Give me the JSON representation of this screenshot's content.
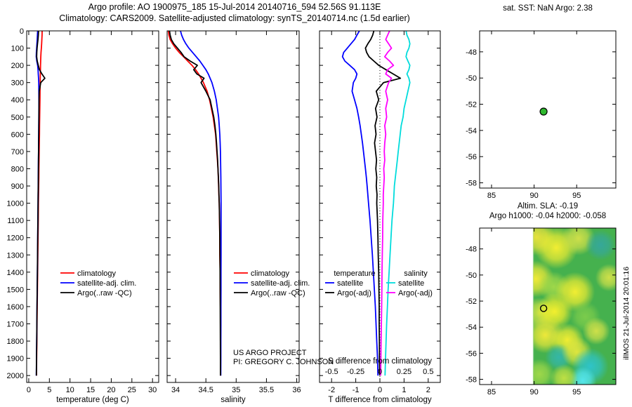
{
  "header": {
    "title_line1": "Argo profile: AO 1900975_185 15-Jul-2014 20140716_594 52.56S 91.113E",
    "title_line2": "Climatology: CARS2009. Satellite-adjusted climatology: synTS_20140714.nc (1.5d earlier)"
  },
  "footer": {
    "project_line1": "US ARGO PROJECT",
    "project_line2": "PI: GREGORY C. JOHNSON",
    "timestamp": "illMOS 21-Jul-2014 20:01:16"
  },
  "chart_data": [
    {
      "id": "temperature-profile",
      "type": "line",
      "xlabel": "temperature (deg C)",
      "xlim": [
        -0.5,
        31.5
      ],
      "ylim": [
        0,
        2040
      ],
      "xticks": [
        0,
        5,
        10,
        15,
        20,
        25,
        30
      ],
      "yticks": [
        0,
        100,
        200,
        300,
        400,
        500,
        600,
        700,
        800,
        900,
        1000,
        1100,
        1200,
        1300,
        1400,
        1500,
        1600,
        1700,
        1800,
        1900,
        2000
      ],
      "ytick_labels": true,
      "depths": [
        0,
        25,
        50,
        75,
        100,
        125,
        150,
        175,
        200,
        225,
        250,
        275,
        300,
        350,
        400,
        450,
        500,
        550,
        600,
        650,
        700,
        750,
        800,
        850,
        900,
        950,
        1000,
        1100,
        1200,
        1300,
        1400,
        1500,
        1600,
        1700,
        1800,
        1900,
        2000
      ],
      "series": [
        {
          "name": "climatology",
          "color": "#ff0000",
          "values": [
            3.25,
            3.22,
            3.18,
            3.12,
            3.05,
            2.98,
            2.92,
            2.88,
            2.85,
            2.83,
            2.81,
            2.79,
            2.77,
            2.74,
            2.71,
            2.68,
            2.65,
            2.62,
            2.59,
            2.56,
            2.53,
            2.5,
            2.47,
            2.44,
            2.41,
            2.38,
            2.35,
            2.3,
            2.25,
            2.2,
            2.15,
            2.1,
            2.05,
            2.0,
            1.96,
            1.92,
            1.88
          ]
        },
        {
          "name": "satellite-adj. clim.",
          "color": "#0000ff",
          "values": [
            2.15,
            2.1,
            2.05,
            1.98,
            1.92,
            1.85,
            1.82,
            1.95,
            2.15,
            2.25,
            2.3,
            2.38,
            2.42,
            2.45,
            2.46,
            2.46,
            2.45,
            2.43,
            2.41,
            2.39,
            2.37,
            2.35,
            2.33,
            2.31,
            2.29,
            2.27,
            2.25,
            2.21,
            2.17,
            2.13,
            2.09,
            2.05,
            2.0,
            1.96,
            1.92,
            1.88,
            1.84
          ]
        },
        {
          "name": "Argo(..raw -QC)",
          "color": "#000000",
          "values": [
            2.38,
            2.32,
            2.24,
            2.12,
            2.02,
            1.95,
            1.92,
            2.05,
            2.3,
            2.6,
            3.2,
            3.9,
            2.9,
            2.55,
            2.5,
            2.48,
            2.46,
            2.44,
            2.42,
            2.4,
            2.38,
            2.36,
            2.34,
            2.32,
            2.3,
            2.28,
            2.26,
            2.22,
            2.18,
            2.14,
            2.1,
            2.06,
            2.01,
            1.97,
            1.93,
            1.89,
            1.85
          ]
        }
      ],
      "legend": [
        {
          "label": "climatology",
          "color": "#ff0000"
        },
        {
          "label": "satellite-adj. clim.",
          "color": "#0000ff"
        },
        {
          "label": "Argo(..raw -QC)",
          "color": "#000000"
        }
      ]
    },
    {
      "id": "salinity-profile",
      "type": "line",
      "xlabel": "salinity",
      "xlim": [
        33.86,
        36.04
      ],
      "ylim": [
        0,
        2040
      ],
      "xticks": [
        34,
        34.5,
        35,
        35.5,
        36
      ],
      "yticks": [
        0,
        100,
        200,
        300,
        400,
        500,
        600,
        700,
        800,
        900,
        1000,
        1100,
        1200,
        1300,
        1400,
        1500,
        1600,
        1700,
        1800,
        1900,
        2000
      ],
      "ytick_labels": false,
      "depths": [
        0,
        25,
        50,
        75,
        100,
        125,
        150,
        175,
        200,
        225,
        250,
        275,
        300,
        350,
        400,
        450,
        500,
        550,
        600,
        650,
        700,
        750,
        800,
        850,
        900,
        950,
        1000,
        1100,
        1200,
        1300,
        1400,
        1500,
        1600,
        1700,
        1800,
        1900,
        2000
      ],
      "series": [
        {
          "name": "climatology",
          "color": "#ff0000",
          "values": [
            33.88,
            33.89,
            33.91,
            33.95,
            34.0,
            34.06,
            34.13,
            34.2,
            34.27,
            34.33,
            34.38,
            34.42,
            34.46,
            34.52,
            34.56,
            34.59,
            34.62,
            34.64,
            34.66,
            34.67,
            34.68,
            34.69,
            34.7,
            34.705,
            34.71,
            34.715,
            34.72,
            34.725,
            34.73,
            34.73,
            34.735,
            34.735,
            34.74,
            34.74,
            34.74,
            34.74,
            34.74
          ]
        },
        {
          "name": "satellite-adj. clim.",
          "color": "#0000ff",
          "values": [
            34.08,
            34.1,
            34.13,
            34.17,
            34.22,
            34.28,
            34.34,
            34.4,
            34.45,
            34.5,
            34.54,
            34.57,
            34.6,
            34.64,
            34.67,
            34.69,
            34.71,
            34.72,
            34.73,
            34.735,
            34.74,
            34.743,
            34.745,
            34.747,
            34.748,
            34.749,
            34.75,
            34.75,
            34.75,
            34.75,
            34.749,
            34.749,
            34.748,
            34.748,
            34.747,
            34.747,
            34.746
          ]
        },
        {
          "name": "Argo(..raw -QC)",
          "color": "#000000",
          "values": [
            33.9,
            33.91,
            33.93,
            33.97,
            34.03,
            34.09,
            34.14,
            34.24,
            34.36,
            34.3,
            34.35,
            34.47,
            34.42,
            34.5,
            34.57,
            34.6,
            34.63,
            34.65,
            34.665,
            34.675,
            34.685,
            34.694,
            34.7,
            34.706,
            34.712,
            34.716,
            34.72,
            34.726,
            34.73,
            34.732,
            34.734,
            34.736,
            34.737,
            34.738,
            34.739,
            34.74,
            34.74
          ]
        }
      ],
      "legend": [
        {
          "label": "climatology",
          "color": "#ff0000"
        },
        {
          "label": "satellite-adj. clim.",
          "color": "#0000ff"
        },
        {
          "label": "Argo(..raw -QC)",
          "color": "#000000"
        }
      ]
    },
    {
      "id": "difference-profile",
      "type": "line",
      "xlabel": "T difference from climatology",
      "x2label": "S difference from climatology",
      "xlim": [
        -2.5,
        2.5
      ],
      "x2lim": [
        -0.625,
        0.625
      ],
      "ylim": [
        0,
        2040
      ],
      "xticks": [
        -2,
        -1,
        0,
        1,
        2
      ],
      "x2ticks": [
        -0.5,
        -0.25,
        0,
        0.25,
        0.5
      ],
      "yticks": [
        0,
        100,
        200,
        300,
        400,
        500,
        600,
        700,
        800,
        900,
        1000,
        1100,
        1200,
        1300,
        1400,
        1500,
        1600,
        1700,
        1800,
        1900,
        2000
      ],
      "ytick_labels": false,
      "zero_line": true,
      "depths": [
        0,
        25,
        50,
        75,
        100,
        125,
        150,
        175,
        200,
        225,
        250,
        275,
        300,
        350,
        400,
        450,
        500,
        550,
        600,
        650,
        700,
        750,
        800,
        850,
        900,
        950,
        1000,
        1100,
        1200,
        1300,
        1400,
        1500,
        1600,
        1700,
        1800,
        1900,
        2000
      ],
      "series": [
        {
          "name": "T satellite",
          "color": "#0000ff",
          "axis": "x1",
          "values": [
            -0.85,
            -0.95,
            -1.05,
            -1.2,
            -1.35,
            -1.5,
            -1.55,
            -1.45,
            -1.25,
            -1.05,
            -0.95,
            -1.0,
            -1.1,
            -1.15,
            -1.05,
            -0.95,
            -0.88,
            -0.82,
            -0.77,
            -0.72,
            -0.68,
            -0.64,
            -0.6,
            -0.56,
            -0.53,
            -0.5,
            -0.47,
            -0.41,
            -0.36,
            -0.31,
            -0.27,
            -0.23,
            -0.19,
            -0.16,
            -0.13,
            -0.1,
            -0.08
          ]
        },
        {
          "name": "T Argo(-adj)",
          "color": "#000000",
          "axis": "x1",
          "values": [
            -0.25,
            -0.3,
            -0.38,
            -0.5,
            -0.6,
            -0.55,
            -0.45,
            -0.25,
            -0.05,
            0.25,
            0.55,
            0.85,
            0.15,
            -0.15,
            -0.05,
            -0.18,
            -0.12,
            -0.2,
            -0.16,
            -0.22,
            -0.18,
            -0.14,
            -0.17,
            -0.13,
            -0.15,
            -0.12,
            -0.13,
            -0.1,
            -0.08,
            -0.07,
            -0.05,
            -0.04,
            -0.03,
            -0.03,
            -0.02,
            -0.02,
            -0.01
          ]
        },
        {
          "name": "S satellite",
          "color": "#00dcdc",
          "axis": "x2",
          "values": [
            0.27,
            0.28,
            0.3,
            0.31,
            0.3,
            0.28,
            0.27,
            0.29,
            0.31,
            0.3,
            0.28,
            0.3,
            0.31,
            0.29,
            0.27,
            0.25,
            0.24,
            0.22,
            0.21,
            0.2,
            0.19,
            0.18,
            0.17,
            0.16,
            0.15,
            0.145,
            0.14,
            0.125,
            0.115,
            0.105,
            0.095,
            0.085,
            0.078,
            0.07,
            0.064,
            0.058,
            0.053
          ]
        },
        {
          "name": "S Argo(-adj)",
          "color": "#ff00ff",
          "axis": "x2",
          "values": [
            0.1,
            0.08,
            0.06,
            0.09,
            0.12,
            0.08,
            0.05,
            0.1,
            0.14,
            0.08,
            0.06,
            0.12,
            0.09,
            0.06,
            0.08,
            0.06,
            0.07,
            0.05,
            0.06,
            0.05,
            0.045,
            0.05,
            0.04,
            0.045,
            0.04,
            0.035,
            0.035,
            0.03,
            0.028,
            0.025,
            0.022,
            0.02,
            0.018,
            0.015,
            0.012,
            0.01,
            0.008
          ]
        }
      ],
      "legend_columns": [
        {
          "header": "temperature",
          "entries": [
            {
              "label": "satellite",
              "color": "#0000ff"
            },
            {
              "label": "Argo(-adj)",
              "color": "#000000"
            }
          ]
        },
        {
          "header": "salinity",
          "entries": [
            {
              "label": "satellite",
              "color": "#00dcdc"
            },
            {
              "label": "Argo(-adj)",
              "color": "#ff00ff"
            }
          ]
        }
      ]
    },
    {
      "id": "sst-map",
      "type": "scatter",
      "title": "sat. SST: NaN Argo: 2.38",
      "xlim": [
        83.6,
        99.6
      ],
      "ylim": [
        -46.4,
        -58.4
      ],
      "xticks": [
        85,
        90,
        95
      ],
      "yticks": [
        -48,
        -50,
        -52,
        -54,
        -56,
        -58
      ],
      "float_marker": {
        "lon": 91.113,
        "lat": -52.56,
        "style": "filled",
        "color": "#2eb82e"
      }
    },
    {
      "id": "sla-map",
      "type": "heatmap",
      "title_line1": "Altim. SLA: -0.19",
      "title_line2": "Argo h1000: -0.04 h2000: -0.058",
      "xlim": [
        83.6,
        99.6
      ],
      "ylim": [
        -46.4,
        -58.4
      ],
      "xticks": [
        85,
        90,
        95
      ],
      "yticks": [
        -48,
        -50,
        -52,
        -54,
        -56,
        -58
      ],
      "float_marker": {
        "lon": 91.113,
        "lat": -52.56,
        "style": "open",
        "color": "#000000"
      },
      "field": {
        "lon_min": 89.9,
        "base_color": "#45b14e",
        "blobs": [
          [
            90.3,
            -47.1,
            1.2,
            "#e8e23c"
          ],
          [
            92.6,
            -47.9,
            1.4,
            "#f2ee33"
          ],
          [
            95.2,
            -47.2,
            1.1,
            "#cfe04a"
          ],
          [
            97.8,
            -47.7,
            1.0,
            "#36a89a"
          ],
          [
            90.2,
            -50.3,
            1.2,
            "#f0ea38"
          ],
          [
            92.3,
            -50.9,
            1.0,
            "#9fd84a"
          ],
          [
            94.8,
            -51.3,
            1.3,
            "#f2ee33"
          ],
          [
            98.8,
            -50.2,
            0.9,
            "#cfe04a"
          ],
          [
            90.6,
            -52.9,
            1.0,
            "#c8e048"
          ],
          [
            92.4,
            -52.8,
            1.2,
            "#f4f02e"
          ],
          [
            96.0,
            -53.2,
            1.0,
            "#7ccc4c"
          ],
          [
            91.3,
            -54.6,
            1.2,
            "#eee93a"
          ],
          [
            93.9,
            -55.0,
            1.1,
            "#f2ee33"
          ],
          [
            97.3,
            -54.3,
            0.9,
            "#cfe04a"
          ],
          [
            92.9,
            -56.3,
            0.9,
            "#35b7a8"
          ],
          [
            95.0,
            -55.9,
            1.0,
            "#dfe63f"
          ],
          [
            96.6,
            -57.0,
            1.2,
            "#2fc4c9"
          ],
          [
            95.7,
            -58.1,
            0.9,
            "#55e6ee"
          ],
          [
            90.6,
            -57.6,
            1.0,
            "#9fd84a"
          ],
          [
            93.5,
            -57.9,
            0.9,
            "#bfe045"
          ]
        ]
      }
    }
  ]
}
